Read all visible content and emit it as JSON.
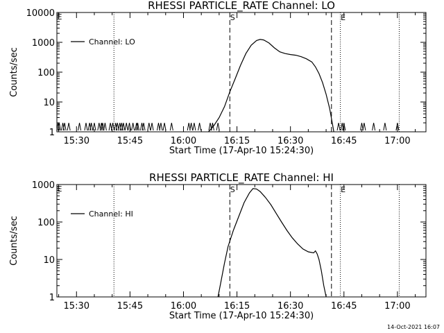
{
  "footer": {
    "timestamp": "14-Oct-2021 16:07"
  },
  "chart_data": [
    {
      "type": "line",
      "title": "RHESSI PARTICLE_RATE Channel: LO",
      "xlabel": "Start Time (17-Apr-10 15:24:30)",
      "ylabel": "Counts/sec",
      "legend": {
        "label": "Channel: LO",
        "placement": "top-left"
      },
      "x_unit": "minutes",
      "xlim": [
        "15:24:30",
        "17:08"
      ],
      "x_ticks": [
        "15:30",
        "15:45",
        "16:00",
        "16:15",
        "16:30",
        "16:45",
        "17:00"
      ],
      "y_scale": "log",
      "ylim": [
        1,
        10000
      ],
      "y_ticks": [
        "1",
        "10",
        "100",
        "1000",
        "10000"
      ],
      "dotted_lines": [
        "15:40:30",
        "16:44",
        "17:00:30"
      ],
      "dashed_lines": [
        "16:13",
        "16:41:30"
      ],
      "markers": [
        {
          "label": "S",
          "time": "16:13"
        },
        {
          "label": "E",
          "time": "16:44"
        }
      ],
      "noise_spikes": [
        "15:24:50",
        "15:25:10",
        "15:26:10",
        "15:26:40",
        "15:27:50",
        "15:30:50",
        "15:32:40",
        "15:33:40",
        "15:34:10",
        "15:35:00",
        "15:36:20",
        "15:37:00",
        "15:37:20",
        "15:38:00",
        "15:39:30",
        "15:40:10",
        "15:41:00",
        "15:41:30",
        "15:42:10",
        "15:42:40",
        "15:43:10",
        "15:44:00",
        "15:44:50",
        "15:45:50",
        "15:46:50",
        "15:47:10",
        "15:48:20",
        "15:48:50",
        "15:50:20",
        "15:51:10",
        "15:53:00",
        "15:53:40",
        "15:54:40",
        "15:56:40",
        "16:01:30",
        "16:02:10",
        "16:03:00",
        "16:04:30",
        "16:07:30",
        "16:08:10",
        "16:09:40",
        "16:43:30",
        "16:44:30",
        "16:45:00",
        "16:50:00",
        "16:50:40",
        "16:53:20",
        "16:56:30",
        "17:00:00"
      ],
      "series": [
        {
          "name": "Channel: LO",
          "points": [
            [
              "16:07:00",
              1
            ],
            [
              "16:08:30",
              1.6
            ],
            [
              "16:10:00",
              3
            ],
            [
              "16:11:30",
              7
            ],
            [
              "16:13:00",
              22
            ],
            [
              "16:14:30",
              60
            ],
            [
              "16:16:00",
              170
            ],
            [
              "16:17:30",
              420
            ],
            [
              "16:19:00",
              800
            ],
            [
              "16:20:30",
              1150
            ],
            [
              "16:21:30",
              1250
            ],
            [
              "16:22:30",
              1200
            ],
            [
              "16:24:00",
              950
            ],
            [
              "16:25:30",
              650
            ],
            [
              "16:27:00",
              480
            ],
            [
              "16:28:30",
              420
            ],
            [
              "16:30:00",
              390
            ],
            [
              "16:31:30",
              370
            ],
            [
              "16:33:00",
              330
            ],
            [
              "16:34:30",
              280
            ],
            [
              "16:36:00",
              220
            ],
            [
              "16:37:00",
              150
            ],
            [
              "16:38:00",
              90
            ],
            [
              "16:39:00",
              45
            ],
            [
              "16:40:00",
              18
            ],
            [
              "16:41:00",
              6
            ],
            [
              "16:41:40",
              2.2
            ],
            [
              "16:42:10",
              1
            ]
          ]
        }
      ]
    },
    {
      "type": "line",
      "title": "RHESSI PARTICLE_RATE Channel: HI",
      "xlabel": "Start Time (17-Apr-10 15:24:30)",
      "ylabel": "Counts/sec",
      "legend": {
        "label": "Channel: HI",
        "placement": "top-left"
      },
      "x_unit": "minutes",
      "xlim": [
        "15:24:30",
        "17:08"
      ],
      "x_ticks": [
        "15:30",
        "15:45",
        "16:00",
        "16:15",
        "16:30",
        "16:45",
        "17:00"
      ],
      "y_scale": "log",
      "ylim": [
        1,
        1000
      ],
      "y_ticks": [
        "1",
        "10",
        "100",
        "1000"
      ],
      "dotted_lines": [
        "15:40:30",
        "16:44",
        "17:00:30"
      ],
      "dashed_lines": [
        "16:13",
        "16:41:30"
      ],
      "markers": [
        {
          "label": "S",
          "time": "16:13"
        },
        {
          "label": "E",
          "time": "16:44"
        }
      ],
      "noise_spikes": [],
      "series": [
        {
          "name": "Channel: HI",
          "points": [
            [
              "16:09:40",
              1
            ],
            [
              "16:10:30",
              2.5
            ],
            [
              "16:11:30",
              8
            ],
            [
              "16:12:30",
              22
            ],
            [
              "16:14:00",
              60
            ],
            [
              "16:15:30",
              140
            ],
            [
              "16:17:00",
              330
            ],
            [
              "16:18:30",
              600
            ],
            [
              "16:19:30",
              780
            ],
            [
              "16:20:30",
              760
            ],
            [
              "16:21:30",
              650
            ],
            [
              "16:23:00",
              450
            ],
            [
              "16:24:30",
              290
            ],
            [
              "16:26:00",
              170
            ],
            [
              "16:27:30",
              100
            ],
            [
              "16:29:00",
              60
            ],
            [
              "16:30:30",
              38
            ],
            [
              "16:32:00",
              26
            ],
            [
              "16:33:30",
              19
            ],
            [
              "16:35:00",
              16
            ],
            [
              "16:36:30",
              15
            ],
            [
              "16:37:00",
              17
            ],
            [
              "16:37:30",
              14
            ],
            [
              "16:38:00",
              10
            ],
            [
              "16:38:40",
              5
            ],
            [
              "16:39:20",
              2
            ],
            [
              "16:40:00",
              1
            ]
          ]
        }
      ]
    }
  ]
}
